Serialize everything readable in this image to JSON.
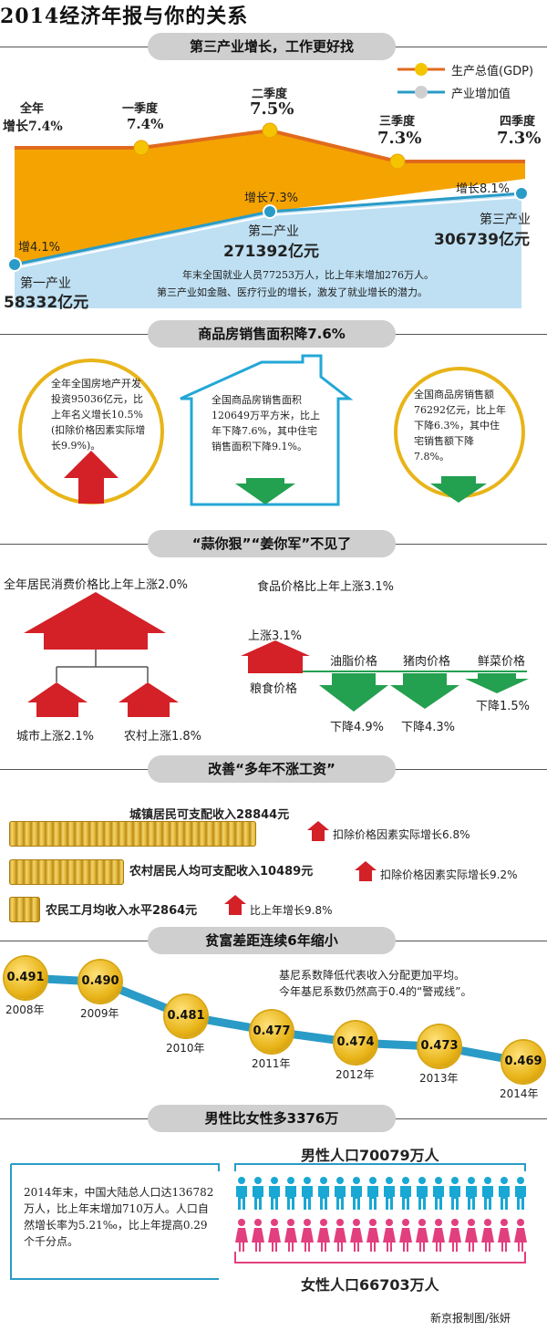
{
  "title": "2014经济年报与你的关系",
  "credit": "新京报制图/张妍",
  "sections": {
    "s1": "第三产业增长，工作更好找",
    "s2": "商品房销售面积降7.6%",
    "s3": "“蒜你狠”“姜你军”不见了",
    "s4": "改善“多年不涨工资”",
    "s5": "贫富差距连续6年缩小",
    "s6": "男性比女性多3376万"
  },
  "chart_data": [
    {
      "type": "line",
      "title": "",
      "legend": {
        "gdp": "生产总值(GDP)",
        "value_added": "产业增加值"
      },
      "gdp_growth": {
        "categories": [
          "全年",
          "一季度",
          "二季度",
          "三季度",
          "四季度"
        ],
        "values": [
          7.4,
          7.4,
          7.5,
          7.3,
          7.3
        ],
        "labels": {
          "annual_line1": "全年",
          "annual_line2": "增长7.4%",
          "q1_line1": "一季度",
          "q1_line2": "7.4%",
          "q2_line1": "二季度",
          "q2_line2": "7.5%",
          "q3_line1": "三季度",
          "q3_line2": "7.3%",
          "q4_line1": "四季度",
          "q4_line2": "7.3%"
        }
      },
      "industry": {
        "categories": [
          "第一产业",
          "第二产业",
          "第三产业"
        ],
        "values_yi_yuan": [
          58332,
          271392,
          306739
        ],
        "growth_pct": [
          4.1,
          7.3,
          8.1
        ],
        "labels": {
          "p1_name": "第一产业",
          "p1_value": "58332亿元",
          "p1_growth": "增4.1%",
          "p2_name": "第二产业",
          "p2_value": "271392亿元",
          "p2_growth": "增长7.3%",
          "p3_name": "第三产业",
          "p3_value": "306739亿元",
          "p3_growth": "增长8.1%"
        }
      },
      "note_line1": "年末全国就业人员77253万人，比上年末增加276万人。",
      "note_line2": "第三产业如金融、医疗行业的增长，激发了就业增长的潜力。"
    },
    {
      "type": "table",
      "items": [
        {
          "text": "全年全国房地产开发投资95036亿元，比上年名义增长10.5%(扣除价格因素实际增长9.9%)。",
          "direction": "up"
        },
        {
          "text": "全国商品房销售面积120649万平方米，比上年下降7.6%，其中住宅销售面积下降9.1%。",
          "direction": "down"
        },
        {
          "text": "全国商品房销售额76292亿元，比上年下降6.3%，其中住宅销售额下降7.8%。",
          "direction": "down"
        }
      ]
    },
    {
      "type": "bar",
      "cpi": {
        "total": "全年居民消费价格比上年上涨2.0%",
        "urban": "城市上涨2.1%",
        "rural": "农村上涨1.8%",
        "values": [
          2.0,
          2.1,
          1.8
        ]
      },
      "food": {
        "header": "食品价格比上年上涨3.1%",
        "categories": [
          "粮食价格",
          "油脂价格",
          "猪肉价格",
          "鲜菜价格"
        ],
        "values": [
          3.1,
          -4.9,
          -4.3,
          -1.5
        ],
        "value_labels": [
          "上涨3.1%",
          "下降4.9%",
          "下降4.3%",
          "下降1.5%"
        ]
      }
    },
    {
      "type": "bar",
      "categories": [
        "城镇居民可支配收入28844元",
        "农村居民人均可支配收入10489元",
        "农民工月均收入水平2864元"
      ],
      "values": [
        28844,
        10489,
        2864
      ],
      "growth_labels": [
        "扣除价格因素实际增长6.8%",
        "扣除价格因素实际增长9.2%",
        "比上年增长9.8%"
      ]
    },
    {
      "type": "line",
      "categories": [
        "2008年",
        "2009年",
        "2010年",
        "2011年",
        "2012年",
        "2013年",
        "2014年"
      ],
      "values": [
        0.491,
        0.49,
        0.481,
        0.477,
        0.474,
        0.473,
        0.469
      ],
      "value_labels": [
        "0.491",
        "0.490",
        "0.481",
        "0.477",
        "0.474",
        "0.473",
        "0.469"
      ],
      "note_line1": "基尼系数降低代表收入分配更加平均。",
      "note_line2": "今年基尼系数仍然高于0.4的“警戒线”。"
    },
    {
      "type": "table",
      "male": "男性人口70079万人",
      "female": "女性人口66703万人",
      "values_wan": [
        70079,
        66703
      ],
      "note": "2014年末，中国大陆总人口达136782万人，比上年末增加710万人。人口自然增长率为5.21‰，比上年提高0.29个千分点。"
    }
  ],
  "colors": {
    "orange": "#f5a300",
    "orange_line": "#e06a1e",
    "blue_fill": "#bfe0f3",
    "blue_line": "#2a9bc7",
    "red": "#d42027",
    "green": "#23a050",
    "gold": "#e8b418",
    "men": "#19a7d3",
    "women": "#e23f7f",
    "pill": "#cfcfcf"
  }
}
